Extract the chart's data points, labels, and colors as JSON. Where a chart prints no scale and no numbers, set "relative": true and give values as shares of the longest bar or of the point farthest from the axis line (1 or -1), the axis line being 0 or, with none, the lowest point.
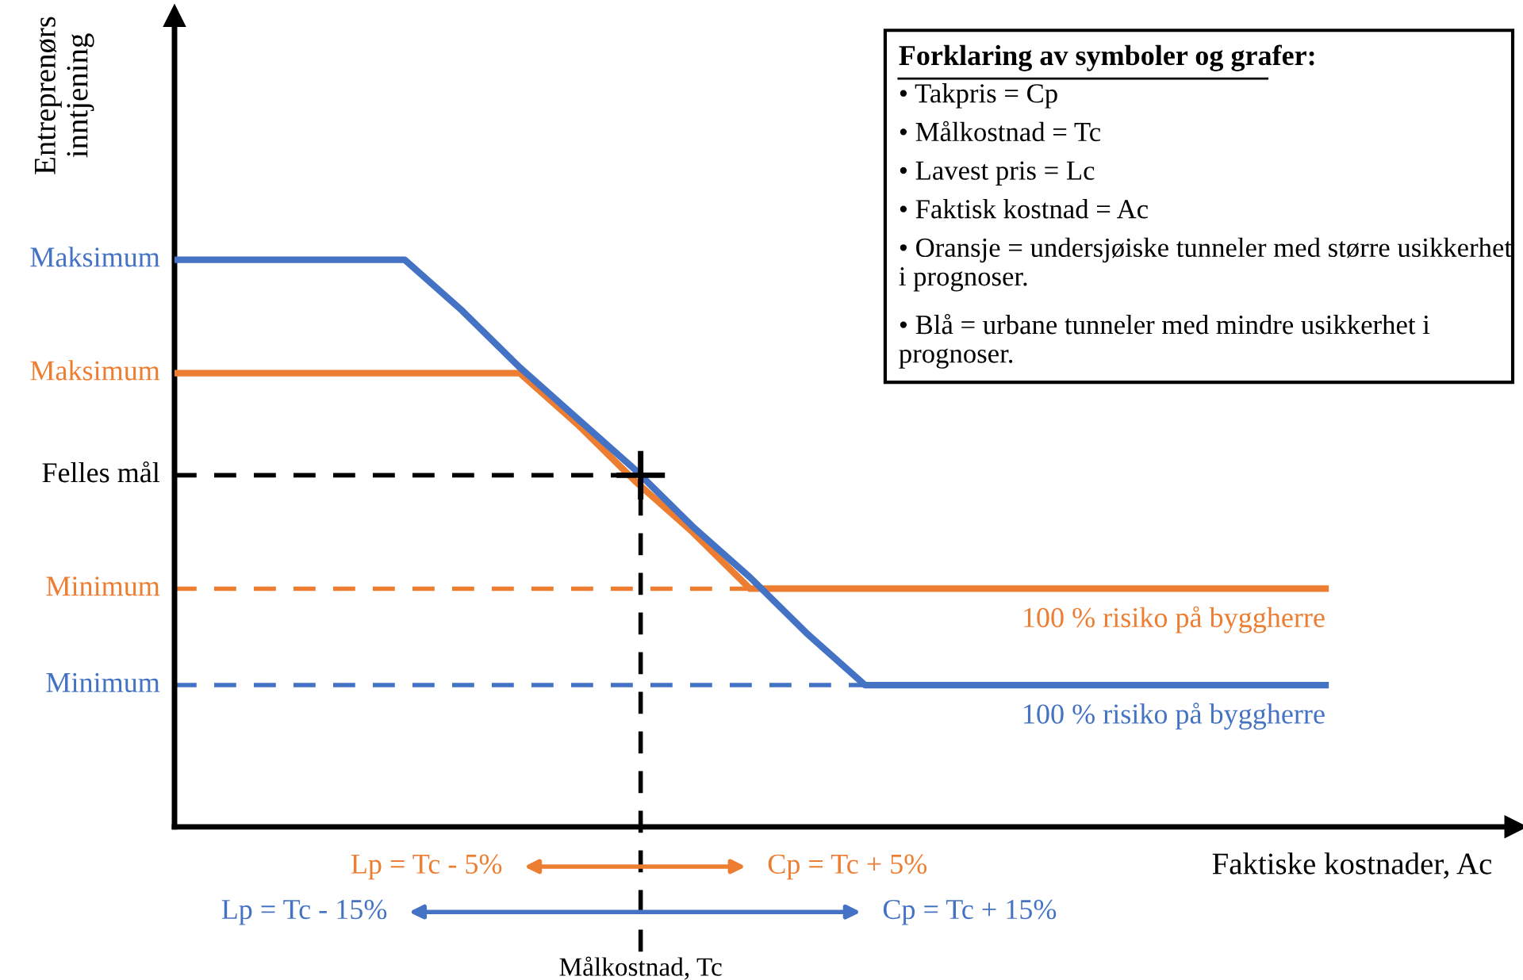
{
  "chart_data": {
    "type": "line",
    "relative": true,
    "ylabel": "Entreprenørs\ninntjening",
    "xlabel": "Faktiske kostnader, Ac",
    "categories": [
      null,
      null,
      null,
      null,
      null,
      null,
      null,
      null,
      null,
      null,
      null,
      null,
      null,
      null,
      null,
      null,
      null,
      null,
      null,
      null,
      null
    ],
    "series": [
      {
        "name": "100 % risiko på byggherre",
        "color": "#4472c4",
        "values": [
          1.0,
          1.0,
          1.0,
          1.0,
          1.0,
          0.91,
          0.81,
          0.72,
          0.63,
          0.53,
          0.44,
          0.34,
          0.25,
          0.25,
          0.25,
          0.25,
          0.25,
          0.25,
          0.25,
          0.25,
          0.25
        ]
      },
      {
        "name": "100 % risiko på byggherre",
        "color": "#ed7d31",
        "values": [
          0.8,
          0.8,
          0.8,
          0.8,
          0.8,
          0.8,
          0.8,
          0.71,
          0.61,
          0.52,
          0.42,
          0.42,
          0.42,
          0.42,
          0.42,
          0.42,
          0.42,
          0.42,
          0.42,
          0.42,
          0.42
        ]
      }
    ],
    "ref_lines": [
      {
        "axis": "y",
        "value": 0.62,
        "label": "Felles mål",
        "color": "#000000",
        "line_style": "dashed"
      },
      {
        "axis": "y",
        "value": 0.42,
        "label": "Minimum",
        "color": "#ed7d31",
        "line_style": "dashed"
      },
      {
        "axis": "y",
        "value": 0.25,
        "label": "Minimum",
        "color": "#4472c4",
        "line_style": "dashed"
      }
    ],
    "annotations": [
      "Maksimum",
      "Maksimum",
      "Forklaring av symboler og grafer:",
      "• Takpris = Cp",
      "• Målkostnad = Tc",
      "• Lavest pris = Lc",
      "• Faktisk kostnad = Ac",
      "• Oransje = undersjøiske tunneler med større usikkerhet i prognoser.",
      "• Blå = urbane tunneler med mindre usikkerhet i prognoser.",
      "Lp = Tc - 5%",
      "Cp = Tc + 5%",
      "Lp = Tc - 15%",
      "Cp = Tc + 15%",
      "Målkostnad, Tc"
    ],
    "legend": false,
    "line_style": "solid"
  }
}
